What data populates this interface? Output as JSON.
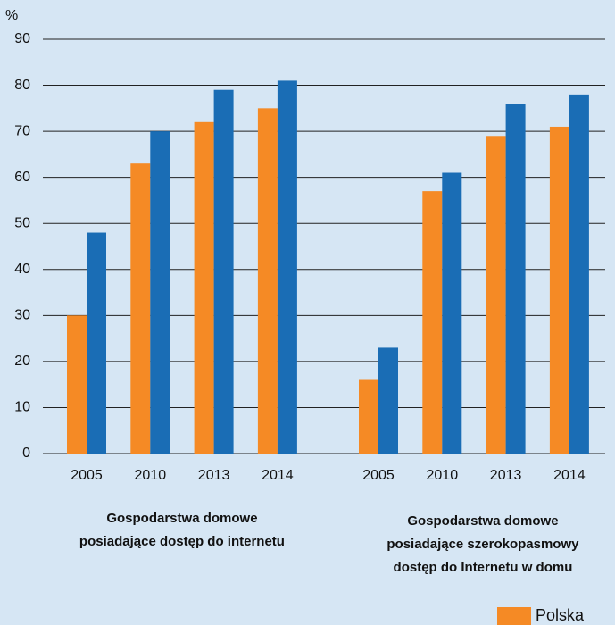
{
  "chart_data": {
    "type": "bar",
    "y_label": "%",
    "categories": [
      "2005",
      "2010",
      "2013",
      "2014",
      "2005",
      "2010",
      "2013",
      "2014"
    ],
    "group_labels": [
      [
        "Gospodarstwa domowe",
        "posiadające dostęp do internetu"
      ],
      [
        "Gospodarstwa domowe",
        "posiadające szerokopasmowy",
        "dostęp do Internetu w domu"
      ]
    ],
    "series": [
      {
        "name": "Polska",
        "color": "#f58a25",
        "values": [
          30,
          63,
          72,
          75,
          16,
          57,
          69,
          71
        ]
      },
      {
        "color": "#1a6db5",
        "values": [
          48,
          70,
          79,
          81,
          23,
          61,
          76,
          78
        ]
      }
    ],
    "ylim": [
      0,
      90
    ],
    "yticks": [
      0,
      10,
      20,
      30,
      40,
      50,
      60,
      70,
      80,
      90
    ],
    "grid": true
  }
}
